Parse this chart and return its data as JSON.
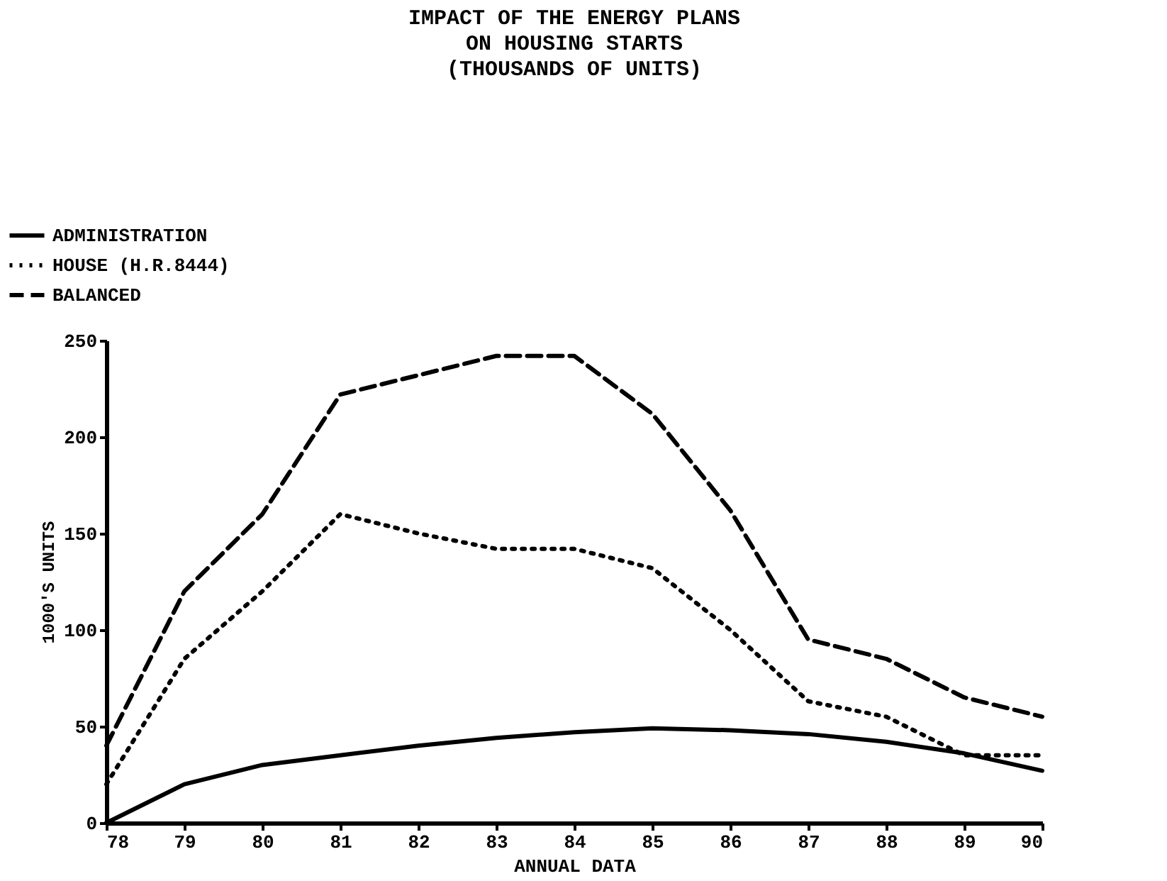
{
  "chart_data": {
    "type": "line",
    "title": [
      "IMPACT OF THE ENERGY PLANS",
      "ON HOUSING STARTS",
      "(THOUSANDS OF UNITS)"
    ],
    "xlabel": "ANNUAL DATA",
    "ylabel": "1000'S UNITS",
    "x": [
      78,
      79,
      80,
      81,
      82,
      83,
      84,
      85,
      86,
      87,
      88,
      89,
      90
    ],
    "series": [
      {
        "name": "ADMINISTRATION",
        "color": "#000000",
        "line_style": "solid",
        "values": [
          0,
          20,
          30,
          35,
          40,
          44,
          47,
          49,
          48,
          46,
          42,
          36,
          27
        ]
      },
      {
        "name": "HOUSE (H.R.8444)",
        "color": "#000000",
        "line_style": "dotted",
        "values": [
          20,
          85,
          120,
          160,
          150,
          142,
          142,
          132,
          100,
          63,
          55,
          35,
          35
        ]
      },
      {
        "name": "BALANCED",
        "color": "#000000",
        "line_style": "dashed",
        "values": [
          40,
          120,
          160,
          222,
          232,
          242,
          242,
          212,
          162,
          95,
          85,
          65,
          55
        ]
      }
    ],
    "xlim": [
      78,
      90
    ],
    "xticks": [
      78,
      79,
      80,
      81,
      82,
      83,
      84,
      85,
      86,
      87,
      88,
      89,
      90
    ],
    "ylim": [
      0,
      250
    ],
    "yticks": [
      0,
      50,
      100,
      150,
      200,
      250
    ],
    "grid": false,
    "legend": "top left",
    "marker": "none"
  }
}
